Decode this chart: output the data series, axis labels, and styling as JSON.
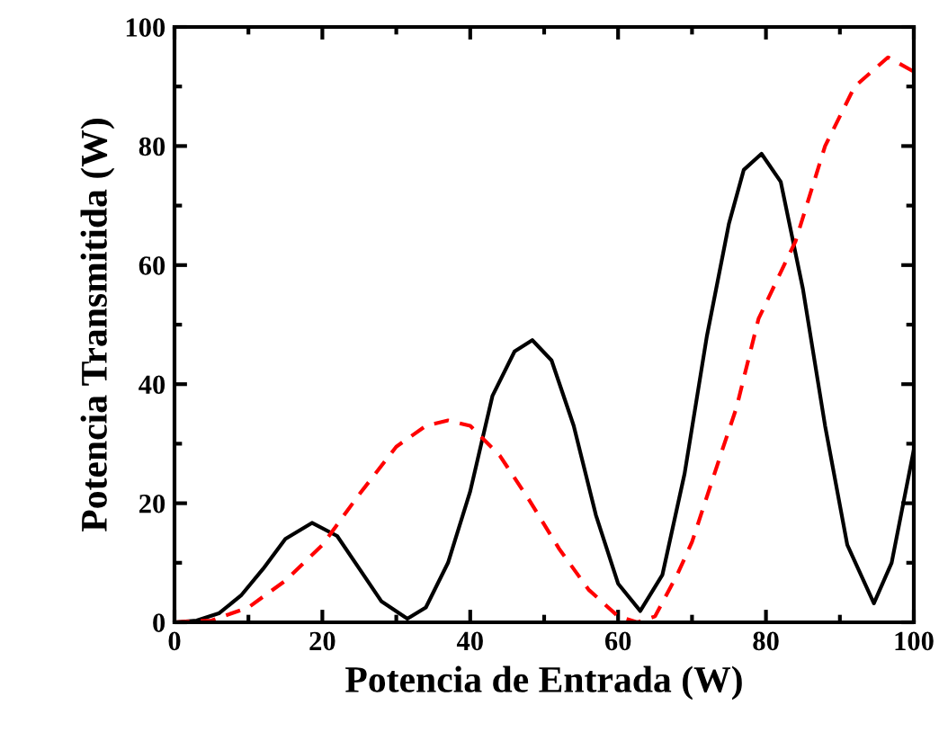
{
  "chart_data": {
    "type": "line",
    "xlabel": "Potencia de Entrada (W)",
    "ylabel": "Potencia Transmitida (W)",
    "xlim": [
      0,
      100
    ],
    "ylim": [
      0,
      100
    ],
    "xticks": [
      0,
      20,
      40,
      60,
      80,
      100
    ],
    "yticks": [
      0,
      20,
      40,
      60,
      80,
      100
    ],
    "grid": false,
    "legend": false,
    "marker": "none",
    "series": [
      {
        "color": "#000000",
        "line_style": "solid",
        "x": [
          0,
          3,
          6,
          9,
          12,
          15,
          18.6,
          22,
          25,
          28,
          31.5,
          34,
          37,
          40,
          43,
          46,
          48.4,
          51,
          54,
          57,
          60,
          63,
          66,
          69,
          72,
          75,
          77,
          79.4,
          82,
          85,
          88,
          91,
          94.6,
          97,
          100
        ],
        "values": [
          0,
          0.3,
          1.5,
          4.5,
          9,
          14,
          16.7,
          14.5,
          9,
          3.5,
          0.6,
          2.5,
          10,
          22,
          38,
          45.5,
          47.4,
          44,
          33,
          18,
          6.5,
          1.9,
          8,
          25,
          48,
          67,
          76,
          78.7,
          74,
          56,
          33,
          13,
          3.2,
          10,
          29
        ]
      },
      {
        "color": "#ff0000",
        "line_style": "dashed",
        "x": [
          0,
          5,
          10,
          15,
          20,
          25,
          30,
          34,
          37,
          40,
          44,
          48,
          52,
          56,
          60,
          62.6,
          65,
          68,
          70,
          74,
          76,
          79,
          84,
          88,
          92,
          96.5,
          100
        ],
        "values": [
          0,
          0.3,
          2.5,
          7,
          13,
          21.5,
          29.5,
          33,
          33.9,
          33,
          28,
          20.5,
          12.4,
          5.5,
          1,
          0,
          1,
          8,
          13.5,
          28.6,
          36,
          51,
          64,
          80,
          90,
          94.9,
          92.5
        ]
      }
    ]
  }
}
